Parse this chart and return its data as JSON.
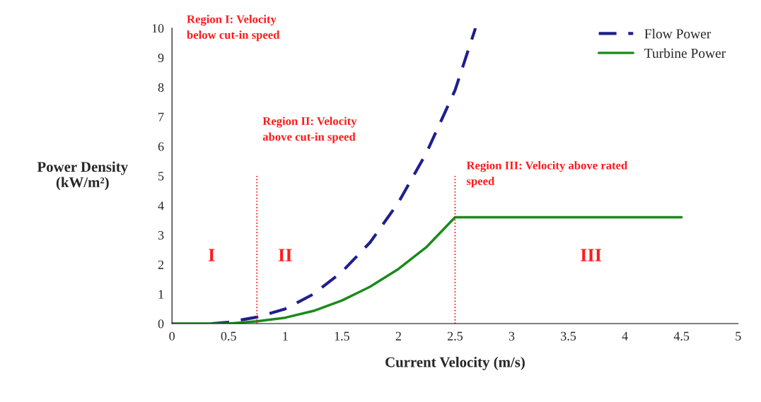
{
  "chart_data": {
    "type": "line",
    "xlabel": "Current Velocity (m/s)",
    "ylabel": "Power Density\n(kW/m²)",
    "xlim": [
      0,
      5
    ],
    "xticks": [
      0,
      0.5,
      1,
      1.5,
      2,
      2.5,
      3,
      3.5,
      4,
      4.5,
      5
    ],
    "ylim": [
      0,
      10
    ],
    "yticks": [
      0,
      1,
      2,
      3,
      4,
      5,
      6,
      7,
      8,
      9,
      10
    ],
    "grid": false,
    "legend": "top right",
    "marker": "none",
    "series": [
      {
        "name": "Flow Power",
        "color": "#1f1f8f",
        "line_style": "dashed",
        "x": [
          0.35,
          0.5,
          0.75,
          1,
          1.25,
          1.5,
          1.75,
          2,
          2.25,
          2.5,
          2.68
        ],
        "values": [
          0,
          0.05,
          0.22,
          0.5,
          1.0,
          1.75,
          2.75,
          4.1,
          5.8,
          7.9,
          10
        ]
      },
      {
        "name": "Turbine Power",
        "color": "#1a8a1a",
        "line_style": "solid",
        "x": [
          0,
          0.5,
          0.75,
          1,
          1.25,
          1.5,
          1.75,
          2,
          2.25,
          2.5,
          3,
          3.5,
          4,
          4.5
        ],
        "values": [
          0,
          0,
          0.08,
          0.2,
          0.43,
          0.78,
          1.25,
          1.85,
          2.6,
          3.6,
          3.6,
          3.6,
          3.6,
          3.6
        ]
      }
    ],
    "ref_lines": [
      {
        "axis": "x",
        "value": 0.75,
        "color": "#ff0000",
        "line_style": "dotted"
      },
      {
        "axis": "x",
        "value": 2.5,
        "color": "#ff0000",
        "line_style": "dotted"
      }
    ],
    "annotations": [
      "Region I: Velocity\nbelow cut-in speed",
      "Region II: Velocity\nabove cut-in speed",
      "Region III: Velocity above rated\nspeed",
      "I",
      "II",
      "III"
    ]
  }
}
